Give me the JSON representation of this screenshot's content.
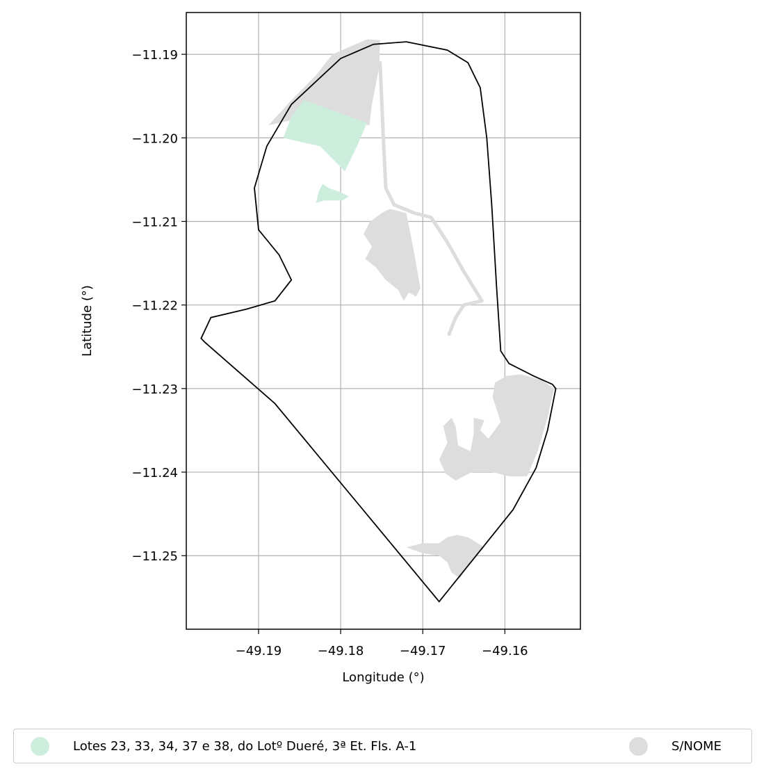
{
  "chart_data": {
    "type": "map",
    "xlabel": "Longitude (°)",
    "ylabel": "Latitude (°)",
    "xlim": [
      -49.1988,
      -49.1508
    ],
    "ylim": [
      -11.2588,
      -11.185
    ],
    "x_ticks": [
      -49.19,
      -49.18,
      -49.17,
      -49.16
    ],
    "x_tick_labels": [
      "−49.19",
      "−49.18",
      "−49.17",
      "−49.16"
    ],
    "y_ticks": [
      -11.19,
      -11.2,
      -11.21,
      -11.22,
      -11.23,
      -11.24,
      -11.25
    ],
    "y_tick_labels": [
      "−11.19",
      "−11.20",
      "−11.21",
      "−11.22",
      "−11.23",
      "−11.24",
      "−11.25"
    ],
    "grid": true,
    "legend_position": "bottom",
    "categories": [
      {
        "name": "Lotes 23, 33, 34, 37 e 38, do Lotº Dueré, 3ª Et. Fls. A-1",
        "color": "#cdeedd"
      },
      {
        "name": "S/NOME",
        "color": "#dddddd"
      }
    ],
    "boundary": [
      [
        -49.168,
        -11.2555
      ],
      [
        -49.1635,
        -11.25
      ],
      [
        -49.159,
        -11.2445
      ],
      [
        -49.1562,
        -11.2395
      ],
      [
        -49.1548,
        -11.235
      ],
      [
        -49.1538,
        -11.23
      ],
      [
        -49.1542,
        -11.2295
      ],
      [
        -49.1565,
        -11.2285
      ],
      [
        -49.1595,
        -11.227
      ],
      [
        -49.1605,
        -11.2255
      ],
      [
        -49.161,
        -11.218
      ],
      [
        -49.1616,
        -11.208
      ],
      [
        -49.1622,
        -11.2
      ],
      [
        -49.163,
        -11.194
      ],
      [
        -49.1645,
        -11.191
      ],
      [
        -49.167,
        -11.1895
      ],
      [
        -49.172,
        -11.1885
      ],
      [
        -49.176,
        -11.1888
      ],
      [
        -49.18,
        -11.1905
      ],
      [
        -49.186,
        -11.196
      ],
      [
        -49.189,
        -11.201
      ],
      [
        -49.1905,
        -11.206
      ],
      [
        -49.19,
        -11.211
      ],
      [
        -49.1875,
        -11.214
      ],
      [
        -49.186,
        -11.217
      ],
      [
        -49.188,
        -11.2195
      ],
      [
        -49.1915,
        -11.2205
      ],
      [
        -49.1958,
        -11.2215
      ],
      [
        -49.197,
        -11.224
      ],
      [
        -49.1965,
        -11.2245
      ],
      [
        -49.188,
        -11.2318
      ],
      [
        -49.168,
        -11.2555
      ]
    ],
    "features": [
      {
        "category": "S/NOME",
        "kind": "polygon",
        "coords": [
          [
            -49.1888,
            -11.1985
          ],
          [
            -49.186,
            -11.1955
          ],
          [
            -49.183,
            -11.1925
          ],
          [
            -49.181,
            -11.19
          ],
          [
            -49.1782,
            -11.1888
          ],
          [
            -49.1768,
            -11.1882
          ],
          [
            -49.1752,
            -11.1883
          ],
          [
            -49.1753,
            -11.1915
          ],
          [
            -49.1757,
            -11.1935
          ],
          [
            -49.1762,
            -11.196
          ],
          [
            -49.1765,
            -11.1985
          ],
          [
            -49.1805,
            -11.1978
          ],
          [
            -49.1835,
            -11.1973
          ],
          [
            -49.1865,
            -11.198
          ]
        ]
      },
      {
        "category": "S/NOME",
        "kind": "line",
        "width": 5,
        "coords": [
          [
            -49.1752,
            -11.191
          ],
          [
            -49.1748,
            -11.2
          ],
          [
            -49.1745,
            -11.206
          ],
          [
            -49.1735,
            -11.208
          ],
          [
            -49.171,
            -11.209
          ],
          [
            -49.169,
            -11.2095
          ],
          [
            -49.167,
            -11.2125
          ],
          [
            -49.165,
            -11.216
          ],
          [
            -49.1628,
            -11.2195
          ],
          [
            -49.165,
            -11.22
          ],
          [
            -49.166,
            -11.2215
          ],
          [
            -49.1668,
            -11.2235
          ]
        ]
      },
      {
        "category": "S/NOME",
        "kind": "polygon",
        "coords": [
          [
            -49.174,
            -11.2085
          ],
          [
            -49.172,
            -11.209
          ],
          [
            -49.171,
            -11.214
          ],
          [
            -49.1703,
            -11.218
          ],
          [
            -49.1708,
            -11.219
          ],
          [
            -49.1717,
            -11.2185
          ],
          [
            -49.1723,
            -11.2195
          ],
          [
            -49.173,
            -11.2182
          ],
          [
            -49.1745,
            -11.217
          ],
          [
            -49.1757,
            -11.2155
          ],
          [
            -49.177,
            -11.2145
          ],
          [
            -49.1762,
            -11.213
          ],
          [
            -49.1772,
            -11.2115
          ],
          [
            -49.1764,
            -11.21
          ],
          [
            -49.175,
            -11.209
          ]
        ]
      },
      {
        "category": "S/NOME",
        "kind": "polygon",
        "coords": [
          [
            -49.158,
            -11.2283
          ],
          [
            -49.1555,
            -11.229
          ],
          [
            -49.154,
            -11.23
          ],
          [
            -49.1548,
            -11.2335
          ],
          [
            -49.156,
            -11.2375
          ],
          [
            -49.1573,
            -11.2405
          ],
          [
            -49.1595,
            -11.2405
          ],
          [
            -49.1615,
            -11.24
          ],
          [
            -49.164,
            -11.24
          ],
          [
            -49.166,
            -11.241
          ],
          [
            -49.1672,
            -11.2402
          ],
          [
            -49.168,
            -11.2385
          ],
          [
            -49.167,
            -11.2365
          ],
          [
            -49.1675,
            -11.2345
          ],
          [
            -49.1665,
            -11.2335
          ],
          [
            -49.166,
            -11.2345
          ],
          [
            -49.1657,
            -11.2368
          ],
          [
            -49.1642,
            -11.2375
          ],
          [
            -49.1638,
            -11.2355
          ],
          [
            -49.1638,
            -11.2335
          ],
          [
            -49.1625,
            -11.2338
          ],
          [
            -49.163,
            -11.235
          ],
          [
            -49.162,
            -11.236
          ],
          [
            -49.1605,
            -11.234
          ],
          [
            -49.161,
            -11.2325
          ],
          [
            -49.1615,
            -11.231
          ],
          [
            -49.1612,
            -11.2293
          ],
          [
            -49.1598,
            -11.2285
          ]
        ]
      },
      {
        "category": "S/NOME",
        "kind": "polygon",
        "coords": [
          [
            -49.1658,
            -11.2475
          ],
          [
            -49.1645,
            -11.2478
          ],
          [
            -49.1625,
            -11.249
          ],
          [
            -49.164,
            -11.2505
          ],
          [
            -49.1655,
            -11.2527
          ],
          [
            -49.1665,
            -11.252
          ],
          [
            -49.167,
            -11.2508
          ],
          [
            -49.168,
            -11.25
          ],
          [
            -49.17,
            -11.2497
          ],
          [
            -49.172,
            -11.249
          ],
          [
            -49.17,
            -11.2485
          ],
          [
            -49.168,
            -11.2485
          ],
          [
            -49.167,
            -11.2478
          ]
        ]
      },
      {
        "category": "Lotes 23, 33, 34, 37 e 38, do Lotº Dueré, 3ª Et. Fls. A-1",
        "kind": "polygon",
        "coords": [
          [
            -49.186,
            -11.1975
          ],
          [
            -49.1845,
            -11.1955
          ],
          [
            -49.1838,
            -11.1957
          ],
          [
            -49.1768,
            -11.1982
          ],
          [
            -49.178,
            -11.201
          ],
          [
            -49.1795,
            -11.204
          ],
          [
            -49.181,
            -11.2025
          ],
          [
            -49.1825,
            -11.201
          ],
          [
            -49.1848,
            -11.2005
          ],
          [
            -49.187,
            -11.2
          ]
        ]
      },
      {
        "category": "Lotes 23, 33, 34, 37 e 38, do Lotº Dueré, 3ª Et. Fls. A-1",
        "kind": "polygon",
        "coords": [
          [
            -49.1815,
            -11.206
          ],
          [
            -49.18,
            -11.2065
          ],
          [
            -49.179,
            -11.207
          ],
          [
            -49.1798,
            -11.2075
          ],
          [
            -49.182,
            -11.2075
          ],
          [
            -49.183,
            -11.2078
          ],
          [
            -49.1827,
            -11.2065
          ],
          [
            -49.1822,
            -11.2055
          ]
        ]
      }
    ]
  }
}
